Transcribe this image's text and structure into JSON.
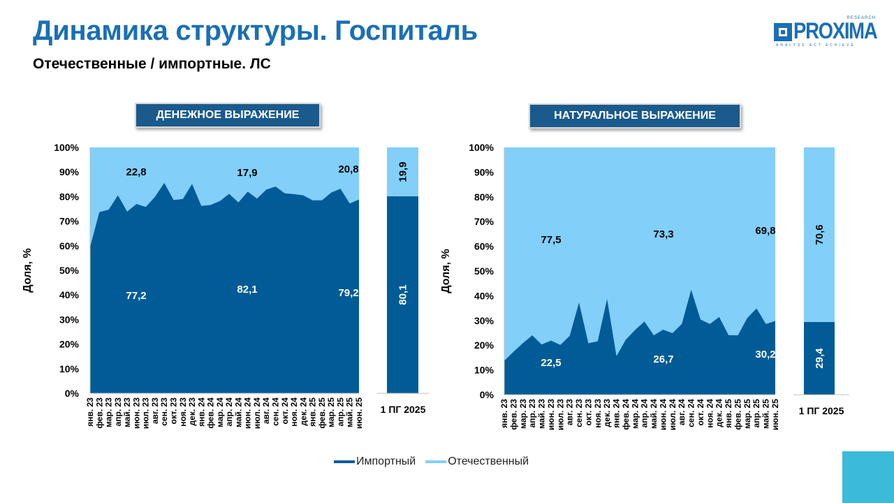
{
  "title": "Динамика структуры. Госпиталь",
  "subtitle": "Отечественные / импортные. ЛС",
  "logo": {
    "text": "PROXIMA",
    "research": "RESEARCH",
    "tagline": "ANALYSE ACT ACHIEVE"
  },
  "colors": {
    "import": "#005b96",
    "domestic": "#82cffa",
    "title": "#1a6fb6",
    "chip": "#1a5a8c",
    "corner": "#3bbad9"
  },
  "legend": [
    {
      "name": "Импортный",
      "color": "#005b96"
    },
    {
      "name": "Отечественный",
      "color": "#82cffa"
    }
  ],
  "chart_data": [
    {
      "type": "area",
      "stacked_percent": true,
      "header": "ДЕНЕЖНОЕ ВЫРАЖЕНИЕ",
      "ylabel": "Доля, %",
      "ylim": [
        0,
        100
      ],
      "yticks": [
        "0%",
        "10%",
        "20%",
        "30%",
        "40%",
        "50%",
        "60%",
        "70%",
        "80%",
        "90%",
        "100%"
      ],
      "categories": [
        "янв. 23",
        "фев. 23",
        "мар. 23",
        "апр. 23",
        "май. 23",
        "июн. 23",
        "июл. 23",
        "авг. 23",
        "сен. 23",
        "окт. 23",
        "ноя. 23",
        "дек. 23",
        "янв. 24",
        "фев. 24",
        "мар. 24",
        "апр. 24",
        "май. 24",
        "июн. 24",
        "июл. 24",
        "авг. 24",
        "сен. 24",
        "окт. 24",
        "ноя. 24",
        "дек. 24",
        "янв. 25",
        "фев. 25",
        "мар. 25",
        "апр. 25",
        "май. 25",
        "июн. 25"
      ],
      "series": [
        {
          "name": "Импортный",
          "values": [
            59.5,
            73.7,
            74.7,
            80.5,
            73.9,
            77.0,
            75.8,
            79.9,
            85.6,
            78.6,
            79.0,
            85.1,
            76.2,
            76.6,
            78.2,
            81.1,
            77.6,
            82.0,
            79.2,
            82.8,
            84.1,
            81.3,
            81.0,
            80.5,
            78.5,
            78.5,
            81.6,
            83.2,
            77.2,
            78.8
          ]
        },
        {
          "name": "Отечественный",
          "values": [
            40.5,
            26.3,
            25.3,
            19.5,
            26.1,
            23.0,
            24.2,
            20.1,
            14.4,
            21.4,
            21.0,
            14.9,
            23.8,
            23.4,
            21.8,
            18.9,
            22.4,
            18.0,
            20.8,
            17.2,
            15.9,
            18.7,
            19.0,
            19.5,
            21.5,
            21.5,
            18.4,
            16.8,
            22.8,
            21.2
          ]
        }
      ],
      "annotations": [
        {
          "label": "22,8",
          "year": "2023",
          "series": "Отечественный"
        },
        {
          "label": "77,2",
          "year": "2023",
          "series": "Импортный"
        },
        {
          "label": "17,9",
          "year": "2024",
          "series": "Отечественный"
        },
        {
          "label": "82,1",
          "year": "2024",
          "series": "Импортный"
        },
        {
          "label": "20,8",
          "year": "2025",
          "series": "Отечественный"
        },
        {
          "label": "79,2",
          "year": "2025",
          "series": "Импортный"
        }
      ],
      "summary": {
        "category": "1 ПГ 2025",
        "import": 80.1,
        "domestic": 19.9,
        "import_label": "80,1",
        "domestic_label": "19,9"
      }
    },
    {
      "type": "area",
      "stacked_percent": true,
      "header": "НАТУРАЛЬНОЕ ВЫРАЖЕНИЕ",
      "ylabel": "Доля, %",
      "ylim": [
        0,
        100
      ],
      "yticks": [
        "0%",
        "10%",
        "20%",
        "30%",
        "40%",
        "50%",
        "60%",
        "70%",
        "80%",
        "90%",
        "100%"
      ],
      "categories": [
        "янв. 23",
        "фев. 23",
        "мар. 23",
        "апр. 23",
        "май. 23",
        "июн. 23",
        "июл. 23",
        "авг. 23",
        "сен. 23",
        "окт. 23",
        "ноя. 23",
        "дек. 23",
        "янв. 24",
        "фев. 24",
        "мар. 24",
        "апр. 24",
        "май. 24",
        "июн. 24",
        "июл. 24",
        "авг. 24",
        "сен. 24",
        "окт. 24",
        "ноя. 24",
        "дек. 24",
        "янв. 25",
        "фев. 25",
        "мар. 25",
        "апр. 25",
        "май. 25",
        "июн. 25"
      ],
      "series": [
        {
          "name": "Импортный",
          "values": [
            13.7,
            17.4,
            20.9,
            24.0,
            20.3,
            21.9,
            20.1,
            23.8,
            37.3,
            20.8,
            21.6,
            38.7,
            15.6,
            22.2,
            26.2,
            29.6,
            24.0,
            26.3,
            24.9,
            28.6,
            42.4,
            30.4,
            28.6,
            31.4,
            24.1,
            24.0,
            31.0,
            34.9,
            28.6,
            29.8
          ]
        },
        {
          "name": "Отечественный",
          "values": [
            86.3,
            82.6,
            79.1,
            76.0,
            79.7,
            78.1,
            79.9,
            76.2,
            62.7,
            79.2,
            78.4,
            61.3,
            84.4,
            77.8,
            73.8,
            70.4,
            76.0,
            73.7,
            75.1,
            71.4,
            57.6,
            69.6,
            71.4,
            68.6,
            75.9,
            76.0,
            69.0,
            65.1,
            71.4,
            70.2
          ]
        }
      ],
      "annotations": [
        {
          "label": "77,5",
          "year": "2023",
          "series": "Отечественный"
        },
        {
          "label": "22,5",
          "year": "2023",
          "series": "Импортный"
        },
        {
          "label": "73,3",
          "year": "2024",
          "series": "Отечественный"
        },
        {
          "label": "26,7",
          "year": "2024",
          "series": "Импортный"
        },
        {
          "label": "69,8",
          "year": "2025",
          "series": "Отечественный"
        },
        {
          "label": "30,2",
          "year": "2025",
          "series": "Импортный"
        }
      ],
      "summary": {
        "category": "1 ПГ 2025",
        "import": 29.4,
        "domestic": 70.6,
        "import_label": "29,4",
        "domestic_label": "70,6"
      }
    }
  ]
}
